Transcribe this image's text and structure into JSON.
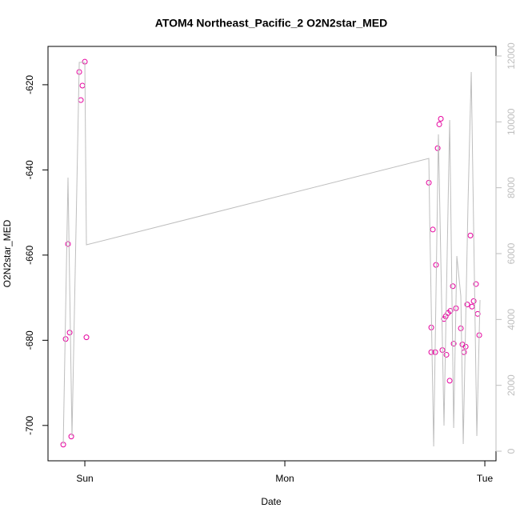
{
  "chart_data": {
    "type": "scatter",
    "title": "ATOM4 Northeast_Pacific_2 O2N2star_MED",
    "xlabel": "Date",
    "ylabel": "O2N2star_MED",
    "xlim": [
      -4.42,
      49.34
    ],
    "xticks": [
      {
        "value": 0,
        "label": "Sun"
      },
      {
        "value": 24,
        "label": "Mon"
      },
      {
        "value": 48,
        "label": "Tue"
      }
    ],
    "ylim": [
      -708.3,
      -611.0
    ],
    "yticks": [
      -620,
      -640,
      -660,
      -680,
      -700
    ],
    "y2lim": [
      -291,
      12291
    ],
    "y2ticks": [
      0,
      2000,
      4000,
      6000,
      8000,
      10000,
      12000
    ],
    "y2color": "#bebebe",
    "series": [
      {
        "type": "scatter",
        "color": "#e6009e",
        "x": [
          -2.59,
          -2.3,
          -2.02,
          -1.82,
          -1.63,
          -0.67,
          -0.48,
          -0.29,
          0,
          0.19,
          41.28,
          41.57,
          41.57,
          41.76,
          42.05,
          42.14,
          42.34,
          42.53,
          42.72,
          42.91,
          43.1,
          43.3,
          43.39,
          43.58,
          43.78,
          43.87,
          44.16,
          44.26,
          44.54,
          45.12,
          45.31,
          45.5,
          45.7,
          45.89,
          46.27,
          46.46,
          46.66,
          46.94,
          47.14,
          47.33
        ],
        "values": [
          -704.5,
          -679.7,
          -657.4,
          -678.2,
          -702.6,
          -617.0,
          -623.6,
          -620.2,
          -614.6,
          -679.3,
          -643.0,
          -677.0,
          -682.8,
          -654.0,
          -682.8,
          -662.3,
          -634.9,
          -629.3,
          -628.0,
          -682.3,
          -675.0,
          -674.4,
          -683.4,
          -673.6,
          -689.5,
          -673.1,
          -667.3,
          -680.8,
          -672.5,
          -677.2,
          -681.0,
          -682.8,
          -681.5,
          -671.6,
          -655.4,
          -672.1,
          -670.8,
          -666.8,
          -673.8,
          -678.8
        ]
      },
      {
        "type": "line",
        "axis": "y2",
        "color": "#bebebe",
        "x": [
          -2.59,
          -2.02,
          -1.54,
          -0.67,
          0,
          0.19,
          41.28,
          41.38,
          41.86,
          42.43,
          43.1,
          43.78,
          44.26,
          44.64,
          45.12,
          45.41,
          45.98,
          46.37,
          47.04,
          47.42
        ],
        "values": [
          219,
          8307,
          461,
          11805,
          11805,
          6267,
          8890,
          7141,
          146,
          9619,
          777,
          10056,
          704,
          5927,
          4712,
          219,
          7505,
          11513,
          461,
          4591
        ]
      }
    ]
  }
}
